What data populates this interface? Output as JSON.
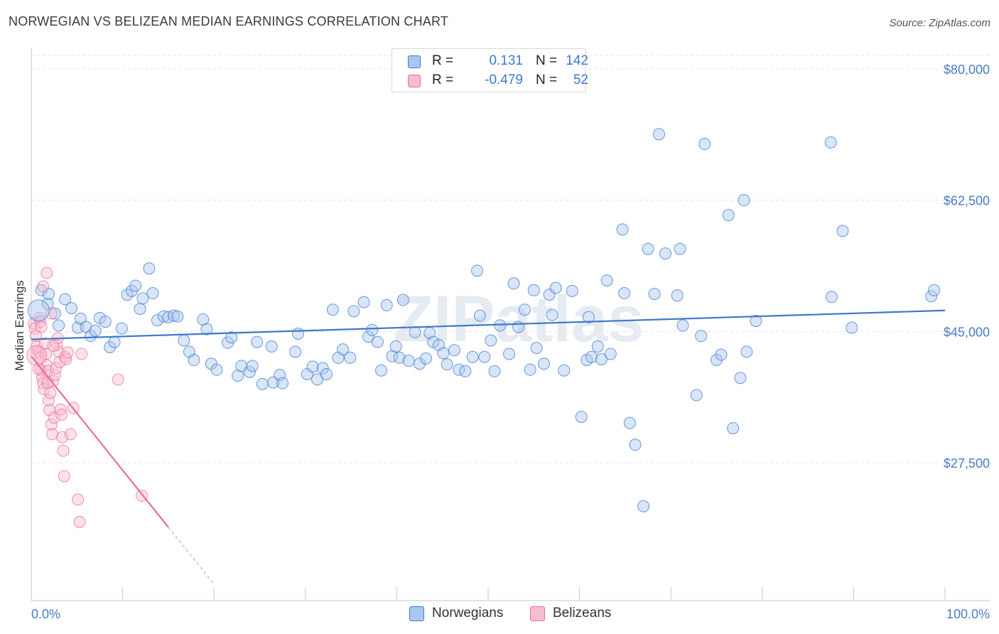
{
  "header": {
    "title": "NORWEGIAN VS BELIZEAN MEDIAN EARNINGS CORRELATION CHART",
    "source": "Source: ZipAtlas.com"
  },
  "watermark": "ZIPatlas",
  "legend_stats": [
    {
      "swatch_color": "#a9c8f0",
      "r_label": "R =",
      "r_value": "0.131",
      "n_label": "N =",
      "n_value": "142"
    },
    {
      "swatch_color": "#f8bcd0",
      "r_label": "R =",
      "r_value": "-0.479",
      "n_label": "N =",
      "n_value": "52"
    }
  ],
  "legend_series": [
    {
      "label": "Norwegians",
      "color": "#a9c8f0"
    },
    {
      "label": "Belizeans",
      "color": "#f8bcd0"
    }
  ],
  "chart_data": {
    "type": "scatter",
    "title": "NORWEGIAN VS BELIZEAN MEDIAN EARNINGS CORRELATION CHART",
    "xlabel": "",
    "ylabel": "Median Earnings",
    "xlim": [
      0,
      100
    ],
    "ylim": [
      10000,
      84000
    ],
    "x_tick_labels": [
      "0.0%",
      "100.0%"
    ],
    "y_ticks": [
      {
        "value": 27500,
        "label": "$27,500"
      },
      {
        "value": 45000,
        "label": "$45,000"
      },
      {
        "value": 62500,
        "label": "$62,500"
      },
      {
        "value": 80000,
        "label": "$80,000"
      }
    ],
    "grid": true,
    "series": [
      {
        "name": "Norwegians",
        "color": "#3e78cc",
        "fill": "#a9c8f0",
        "trend": {
          "x": [
            0,
            100
          ],
          "y": [
            43950,
            47800
          ]
        },
        "points": [
          [
            1.1,
            50500
          ],
          [
            1.8,
            48700
          ],
          [
            1.9,
            50000
          ],
          [
            2.6,
            47400
          ],
          [
            3.0,
            45800
          ],
          [
            3.7,
            49300
          ],
          [
            4.4,
            48100
          ],
          [
            5.1,
            45500
          ],
          [
            5.4,
            46700
          ],
          [
            6.0,
            45600
          ],
          [
            6.5,
            44400
          ],
          [
            7.0,
            45100
          ],
          [
            7.5,
            46800
          ],
          [
            8.1,
            46300
          ],
          [
            8.6,
            42900
          ],
          [
            9.1,
            43600
          ],
          [
            9.9,
            45400
          ],
          [
            10.5,
            49900
          ],
          [
            11.0,
            50400
          ],
          [
            11.4,
            51100
          ],
          [
            11.9,
            48000
          ],
          [
            12.2,
            49400
          ],
          [
            12.9,
            53400
          ],
          [
            13.3,
            50100
          ],
          [
            13.8,
            46500
          ],
          [
            14.5,
            47000
          ],
          [
            15.0,
            46900
          ],
          [
            15.6,
            47100
          ],
          [
            16.0,
            47000
          ],
          [
            16.7,
            43800
          ],
          [
            17.3,
            42300
          ],
          [
            17.8,
            41200
          ],
          [
            18.8,
            46600
          ],
          [
            19.2,
            45300
          ],
          [
            19.7,
            40700
          ],
          [
            20.3,
            39900
          ],
          [
            21.5,
            43500
          ],
          [
            21.9,
            44200
          ],
          [
            22.6,
            39100
          ],
          [
            23.0,
            40400
          ],
          [
            23.9,
            39600
          ],
          [
            24.2,
            40400
          ],
          [
            24.7,
            43600
          ],
          [
            25.3,
            38000
          ],
          [
            26.3,
            43000
          ],
          [
            26.5,
            38200
          ],
          [
            27.2,
            39200
          ],
          [
            27.5,
            38100
          ],
          [
            28.9,
            42300
          ],
          [
            29.2,
            44700
          ],
          [
            30.2,
            39300
          ],
          [
            30.8,
            40300
          ],
          [
            31.3,
            38600
          ],
          [
            31.9,
            40100
          ],
          [
            32.3,
            39300
          ],
          [
            33.0,
            47900
          ],
          [
            33.6,
            41500
          ],
          [
            34.1,
            42600
          ],
          [
            34.9,
            41500
          ],
          [
            35.3,
            47700
          ],
          [
            36.4,
            48900
          ],
          [
            36.9,
            44300
          ],
          [
            37.3,
            45200
          ],
          [
            37.9,
            43600
          ],
          [
            38.3,
            39800
          ],
          [
            38.9,
            48500
          ],
          [
            39.5,
            41700
          ],
          [
            39.9,
            43000
          ],
          [
            40.3,
            41500
          ],
          [
            40.7,
            49200
          ],
          [
            41.3,
            41100
          ],
          [
            42.0,
            44900
          ],
          [
            42.5,
            40700
          ],
          [
            43.2,
            41400
          ],
          [
            43.6,
            44800
          ],
          [
            44.0,
            43600
          ],
          [
            44.6,
            43200
          ],
          [
            45.1,
            42100
          ],
          [
            45.5,
            40600
          ],
          [
            46.3,
            42500
          ],
          [
            46.8,
            39900
          ],
          [
            47.5,
            39700
          ],
          [
            48.3,
            41600
          ],
          [
            48.8,
            53100
          ],
          [
            49.1,
            47100
          ],
          [
            49.6,
            41600
          ],
          [
            50.3,
            43800
          ],
          [
            50.7,
            39700
          ],
          [
            51.3,
            45800
          ],
          [
            52.3,
            42000
          ],
          [
            52.8,
            51400
          ],
          [
            53.3,
            45600
          ],
          [
            54.0,
            47900
          ],
          [
            54.6,
            39900
          ],
          [
            55.0,
            50500
          ],
          [
            55.3,
            42800
          ],
          [
            56.1,
            40700
          ],
          [
            56.7,
            49900
          ],
          [
            57.0,
            47200
          ],
          [
            57.4,
            50800
          ],
          [
            58.3,
            39800
          ],
          [
            59.2,
            50400
          ],
          [
            60.2,
            33600
          ],
          [
            60.8,
            41200
          ],
          [
            61.0,
            46900
          ],
          [
            61.3,
            41600
          ],
          [
            62.0,
            43000
          ],
          [
            62.4,
            41300
          ],
          [
            63.0,
            51800
          ],
          [
            63.4,
            42000
          ],
          [
            64.7,
            58600
          ],
          [
            64.9,
            50100
          ],
          [
            65.5,
            32800
          ],
          [
            66.1,
            29900
          ],
          [
            67.0,
            21700
          ],
          [
            67.5,
            56000
          ],
          [
            68.2,
            50000
          ],
          [
            68.7,
            71300
          ],
          [
            69.4,
            55400
          ],
          [
            70.7,
            49800
          ],
          [
            71.0,
            56000
          ],
          [
            71.3,
            45800
          ],
          [
            72.8,
            36500
          ],
          [
            73.3,
            44400
          ],
          [
            73.7,
            70000
          ],
          [
            75.0,
            41200
          ],
          [
            75.5,
            41900
          ],
          [
            76.3,
            60500
          ],
          [
            76.8,
            32100
          ],
          [
            77.6,
            38800
          ],
          [
            78.0,
            62500
          ],
          [
            78.3,
            42300
          ],
          [
            79.3,
            46400
          ],
          [
            87.5,
            70200
          ],
          [
            87.6,
            49600
          ],
          [
            88.8,
            58400
          ],
          [
            89.8,
            45500
          ],
          [
            98.5,
            49700
          ],
          [
            98.8,
            50500
          ]
        ]
      },
      {
        "name": "Belizeans",
        "color": "#e86e9a",
        "fill": "#f8bcd0",
        "trend": {
          "x": [
            0,
            15
          ],
          "y": [
            41700,
            18900
          ]
        },
        "trend_ext": {
          "x": [
            15,
            20
          ],
          "y": [
            18900,
            11300
          ]
        },
        "points": [
          [
            0.3,
            46100
          ],
          [
            0.4,
            45400
          ],
          [
            0.5,
            44400
          ],
          [
            0.6,
            43000
          ],
          [
            0.7,
            42400
          ],
          [
            0.9,
            46800
          ],
          [
            0.9,
            42100
          ],
          [
            1.0,
            41500
          ],
          [
            1.1,
            39800
          ],
          [
            1.2,
            38900
          ],
          [
            1.3,
            38100
          ],
          [
            1.4,
            37300
          ],
          [
            1.5,
            43400
          ],
          [
            1.6,
            42000
          ],
          [
            1.7,
            40500
          ],
          [
            1.8,
            39700
          ],
          [
            1.9,
            35800
          ],
          [
            2.0,
            34500
          ],
          [
            2.1,
            36800
          ],
          [
            2.2,
            32600
          ],
          [
            2.3,
            31300
          ],
          [
            2.4,
            38400
          ],
          [
            2.5,
            33500
          ],
          [
            2.6,
            39200
          ],
          [
            2.7,
            40100
          ],
          [
            2.8,
            43200
          ],
          [
            2.9,
            44100
          ],
          [
            3.0,
            42300
          ],
          [
            3.1,
            40900
          ],
          [
            3.2,
            34600
          ],
          [
            3.3,
            33900
          ],
          [
            3.4,
            30900
          ],
          [
            3.5,
            29100
          ],
          [
            3.6,
            25700
          ],
          [
            3.7,
            41600
          ],
          [
            3.8,
            41300
          ],
          [
            4.0,
            42200
          ],
          [
            4.3,
            31300
          ],
          [
            4.6,
            34800
          ],
          [
            5.1,
            22600
          ],
          [
            5.3,
            19600
          ],
          [
            5.5,
            42000
          ],
          [
            9.5,
            38600
          ],
          [
            12.1,
            23100
          ],
          [
            1.3,
            51000
          ],
          [
            1.7,
            52800
          ],
          [
            2.2,
            47400
          ],
          [
            1.0,
            46300
          ],
          [
            0.8,
            40000
          ],
          [
            1.1,
            45600
          ],
          [
            2.4,
            43100
          ],
          [
            1.8,
            38200
          ]
        ]
      }
    ]
  }
}
